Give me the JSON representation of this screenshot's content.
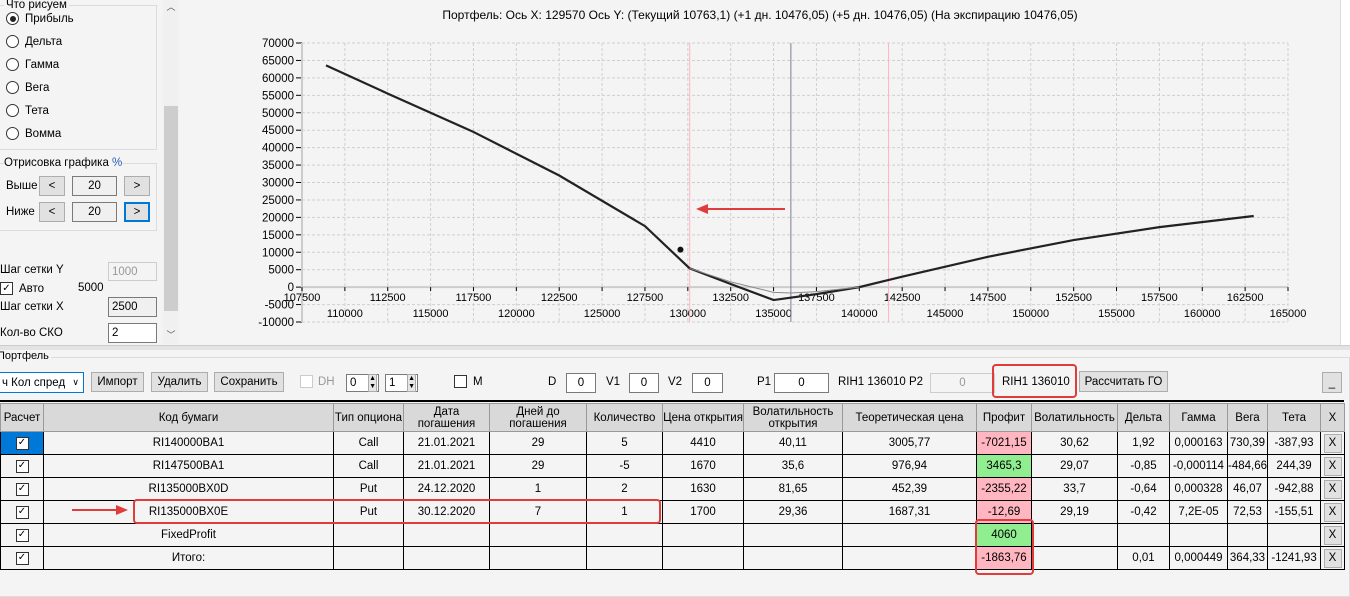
{
  "left": {
    "group_title": "Что рисуем",
    "radios": [
      {
        "label": "Прибыль",
        "checked": true
      },
      {
        "label": "Дельта",
        "checked": false
      },
      {
        "label": "Гамма",
        "checked": false
      },
      {
        "label": "Вега",
        "checked": false
      },
      {
        "label": "Тета",
        "checked": false
      },
      {
        "label": "Вомма",
        "checked": false
      }
    ],
    "draw_group": "Отрисовка графика",
    "draw_pct": "%",
    "above_label": "Выше",
    "above_value": "20",
    "below_label": "Ниже",
    "below_value": "20",
    "prev": "<",
    "next": ">",
    "grid_y_label": "Шаг сетки Y",
    "grid_y_value": "1000",
    "auto_label": "Авто",
    "auto_value": "5000",
    "grid_x_label": "Шаг сетки X",
    "grid_x_value": "2500",
    "sko_label": "Кол-во СКО",
    "sko_value": "2"
  },
  "chart_data": {
    "type": "line",
    "title": "Портфель: Ось X: 129570 Ось Y:  (Текущий 10763,1)  (+1 дн. 10476,05)  (+5 дн. 10476,05)  (На экспирацию 10476,05)",
    "xlim": [
      107500,
      165000
    ],
    "ylim": [
      -10000,
      70000
    ],
    "grid": true,
    "yticks": [
      -10000,
      -5000,
      0,
      5000,
      10000,
      15000,
      20000,
      25000,
      30000,
      35000,
      40000,
      45000,
      50000,
      55000,
      60000,
      65000,
      70000
    ],
    "xticks_top": [
      107500,
      112500,
      117500,
      122500,
      127500,
      132500,
      137500,
      142500,
      147500,
      152500,
      157500,
      162500
    ],
    "xticks_bottom": [
      110000,
      115000,
      120000,
      125000,
      130000,
      135000,
      140000,
      145000,
      150000,
      155000,
      160000,
      165000
    ],
    "series": [
      {
        "points": [
          [
            108900,
            63600
          ],
          [
            112500,
            55500
          ],
          [
            117500,
            44500
          ],
          [
            122500,
            32000
          ],
          [
            127500,
            17500
          ],
          [
            130100,
            5400
          ],
          [
            132500,
            900
          ],
          [
            135000,
            -3700
          ],
          [
            137500,
            -2000
          ],
          [
            140000,
            0
          ],
          [
            142500,
            3000
          ],
          [
            147500,
            8700
          ],
          [
            152500,
            13500
          ],
          [
            157500,
            17200
          ],
          [
            163000,
            20400
          ]
        ]
      },
      {
        "points": [
          [
            130100,
            5400
          ],
          [
            132500,
            1500
          ],
          [
            135000,
            -1500
          ],
          [
            136010,
            -1700
          ],
          [
            137500,
            -1300
          ],
          [
            140000,
            0
          ]
        ]
      }
    ],
    "current_point": [
      129570,
      10763.1
    ],
    "current_price": 136010,
    "sko_lines": [
      130110,
      141700
    ],
    "colors": {
      "curve": "#222222",
      "sko": "#ffb6c1",
      "current": "#7a8090"
    }
  },
  "portfolio": {
    "title": "Портфель",
    "strategy": "ч Кол спред",
    "import": "Импорт",
    "delete": "Удалить",
    "save": "Сохранить",
    "dh": "DH",
    "spin1": "0",
    "spin2": "1",
    "m": "M",
    "d_label": "D",
    "d_value": "0",
    "v1_label": "V1",
    "v1_value": "0",
    "v2_label": "V2",
    "v2_value": "0",
    "p1_label": "P1",
    "p1_value": "0",
    "p1_info": "RIH1 136010",
    "p2_label": "P2",
    "p2_value": "0",
    "p2_info": "RIH1 136010",
    "calc_go": "Рассчитать ГО",
    "minimize": "_"
  },
  "table": {
    "headers": [
      "Расчет",
      "Код бумаги",
      "Тип опциона",
      "Дата погашения",
      "Дней до погашения",
      "Количество",
      "Цена открытия",
      "Волатильность открытия",
      "Теоретическая цена",
      "Профит",
      "Волатильность",
      "Дельта",
      "Гамма",
      "Вега",
      "Тета",
      "X"
    ],
    "rows": [
      {
        "code": "RI140000BA1",
        "type": "Call",
        "date": "21.01.2021",
        "days": "29",
        "qty": "5",
        "open": "4410",
        "vol_open": "40,11",
        "theor": "3005,77",
        "profit": "-7021,15",
        "profit_state": "red",
        "vol": "30,62",
        "delta": "1,92",
        "gamma": "0,000163",
        "vega": "730,39",
        "theta": "-387,93",
        "x": "X"
      },
      {
        "code": "RI147500BA1",
        "type": "Call",
        "date": "21.01.2021",
        "days": "29",
        "qty": "-5",
        "open": "1670",
        "vol_open": "35,6",
        "theor": "976,94",
        "profit": "3465,3",
        "profit_state": "green",
        "vol": "29,07",
        "delta": "-0,85",
        "gamma": "-0,000114",
        "vega": "-484,66",
        "theta": "244,39",
        "x": "X"
      },
      {
        "code": "RI135000BX0D",
        "type": "Put",
        "date": "24.12.2020",
        "days": "1",
        "qty": "2",
        "open": "1630",
        "vol_open": "81,65",
        "theor": "452,39",
        "profit": "-2355,22",
        "profit_state": "red",
        "vol": "33,7",
        "delta": "-0,64",
        "gamma": "0,000328",
        "vega": "46,07",
        "theta": "-942,88",
        "x": "X"
      },
      {
        "code": "RI135000BX0E",
        "type": "Put",
        "date": "30.12.2020",
        "days": "7",
        "qty": "1",
        "open": "1700",
        "vol_open": "29,36",
        "theor": "1687,31",
        "profit": "-12,69",
        "profit_state": "red",
        "vol": "29,19",
        "delta": "-0,42",
        "gamma": "7,2E-05",
        "vega": "72,53",
        "theta": "-155,51",
        "x": "X"
      },
      {
        "code": "FixedProfit",
        "type": "",
        "date": "",
        "days": "",
        "qty": "",
        "open": "",
        "vol_open": "",
        "theor": "",
        "profit": "4060",
        "profit_state": "green",
        "vol": "",
        "delta": "",
        "gamma": "",
        "vega": "",
        "theta": "",
        "x": "X"
      },
      {
        "code": "Итого:",
        "type": "",
        "date": "",
        "days": "",
        "qty": "",
        "open": "",
        "vol_open": "",
        "theor": "",
        "profit": "-1863,76",
        "profit_state": "red",
        "vol": "",
        "delta": "0,01",
        "gamma": "0,000449",
        "vega": "364,33",
        "theta": "-1241,93",
        "x": "X"
      }
    ]
  }
}
